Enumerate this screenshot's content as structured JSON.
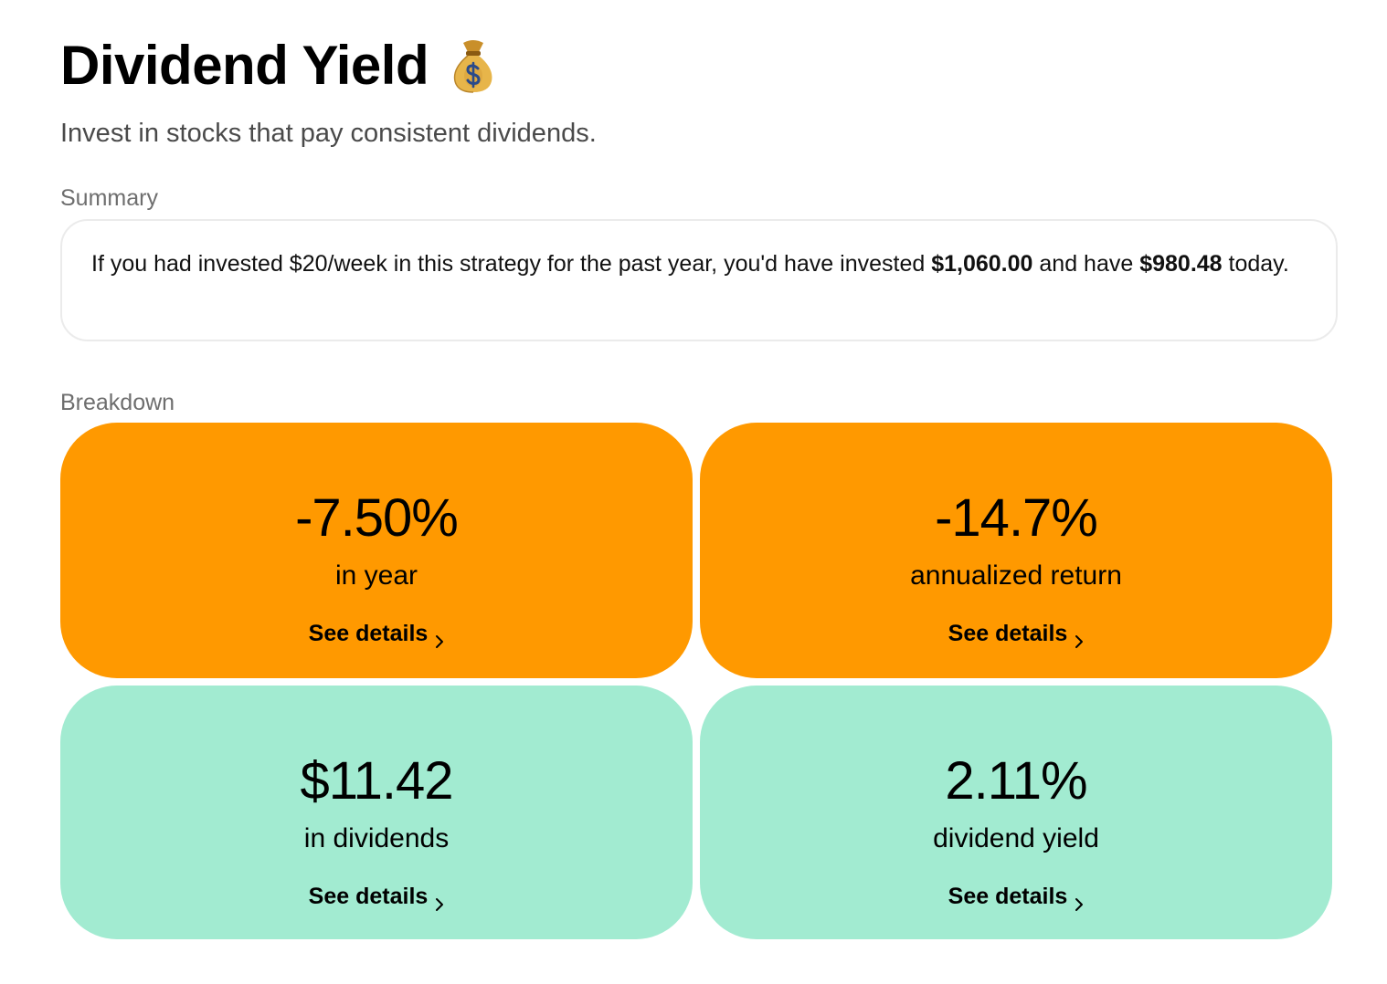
{
  "header": {
    "title": "Dividend Yield",
    "title_icon": "money-bag-icon",
    "subtitle": "Invest in stocks that pay consistent dividends."
  },
  "summary": {
    "label": "Summary",
    "text_part1": "If you had invested $20/week in this strategy for the past year, you'd have invested ",
    "invested_amount": "$1,060.00",
    "text_part2": " and have ",
    "current_value": "$980.48",
    "text_part3": " today."
  },
  "breakdown": {
    "label": "Breakdown",
    "cards": [
      {
        "value": "-7.50%",
        "caption": "in year",
        "link": "See details",
        "color": "#ff9900"
      },
      {
        "value": "-14.7%",
        "caption": "annualized return",
        "link": "See details",
        "color": "#ff9900"
      },
      {
        "value": "$11.42",
        "caption": "in dividends",
        "link": "See details",
        "color": "#a2ebd1"
      },
      {
        "value": "2.11%",
        "caption": "dividend yield",
        "link": "See details",
        "color": "#a2ebd1"
      }
    ]
  }
}
